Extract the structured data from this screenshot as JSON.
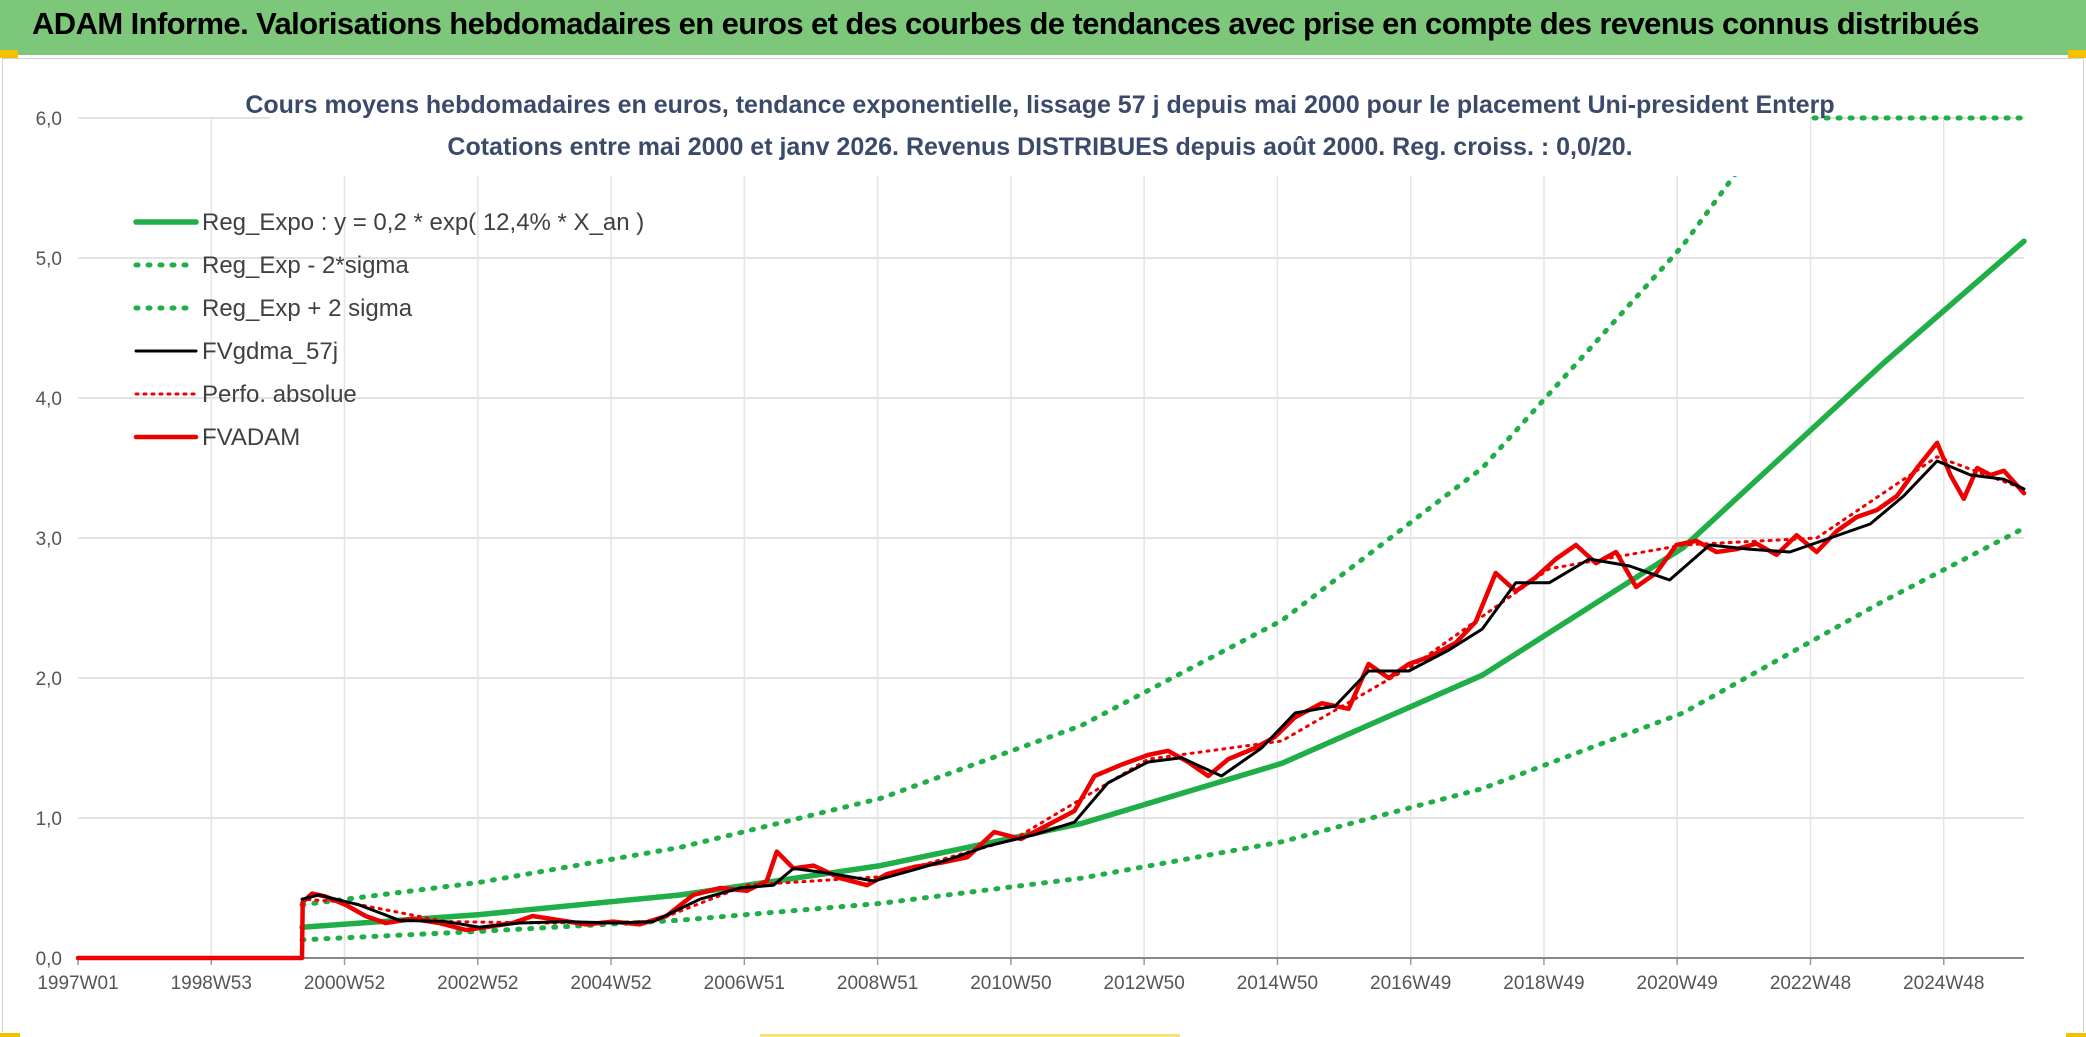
{
  "header": {
    "title": "ADAM Informe. Valorisations hebdomadaires en euros et des courbes de tendances avec prise en compte des revenus connus distribués"
  },
  "colors": {
    "header_bg": "#7dc77b",
    "reg_green": "#1fae48",
    "fv_black": "#000000",
    "adam_red": "#ee0000",
    "grid": "#d9d9d9"
  },
  "chart_data": {
    "type": "line",
    "title": "Cours moyens hebdomadaires en euros, tendance exponentielle, lissage 57 j depuis mai 2000 pour le placement Uni-president Enterp",
    "subtitle": "Cotations entre mai 2000 et janv 2026. Revenus DISTRIBUES depuis août 2000. Reg. croiss. : 0,0/20.",
    "y_ticks": [
      "0,0",
      "1,0",
      "2,0",
      "3,0",
      "4,0",
      "5,0",
      "6,0"
    ],
    "ylim": [
      0,
      6
    ],
    "x_ticks": [
      "1997W01",
      "1998W53",
      "2000W52",
      "2002W52",
      "2004W52",
      "2006W51",
      "2008W51",
      "2010W50",
      "2012W50",
      "2014W50",
      "2016W49",
      "2018W49",
      "2020W49",
      "2022W48",
      "2024W48"
    ],
    "xlim": [
      1997.0,
      2026.1
    ],
    "grid": true,
    "legend_position": "top-left",
    "legend": [
      {
        "label": "Reg_Expo : y = 0,2 * exp( 12,4% *  X_an )",
        "style": "solid-green"
      },
      {
        "label": "Reg_Exp - 2*sigma",
        "style": "dotted-green"
      },
      {
        "label": "Reg_Exp + 2 sigma",
        "style": "dotted-green"
      },
      {
        "label": "FVgdma_57j",
        "style": "solid-black"
      },
      {
        "label": "Perfo. absolue",
        "style": "dotted-red"
      },
      {
        "label": "FVADAM",
        "style": "solid-red"
      }
    ],
    "series": [
      {
        "name": "Reg_Expo : y = 0,2 * exp( 12,4% *  X_an )",
        "x": [
          2000.35,
          2003,
          2006,
          2009,
          2012,
          2015,
          2018,
          2021,
          2024,
          2026.1
        ],
        "values": [
          0.22,
          0.31,
          0.45,
          0.66,
          0.96,
          1.39,
          2.02,
          2.93,
          4.25,
          5.12
        ]
      },
      {
        "name": "Reg_Exp - 2*sigma",
        "x": [
          2000.35,
          2003,
          2006,
          2009,
          2012,
          2015,
          2018,
          2021,
          2024,
          2026.1
        ],
        "values": [
          0.13,
          0.19,
          0.27,
          0.39,
          0.57,
          0.83,
          1.21,
          1.75,
          2.55,
          3.07
        ]
      },
      {
        "name": "Reg_Exp + 2 sigma",
        "x": [
          2000.35,
          2003,
          2006,
          2009,
          2012,
          2015,
          2018,
          2021,
          2022.4,
          2026.1
        ],
        "values": [
          0.38,
          0.54,
          0.79,
          1.14,
          1.66,
          2.41,
          3.5,
          5.09,
          6.0,
          6.0
        ]
      },
      {
        "name": "FVgdma_57j",
        "x": [
          2000.35,
          2000.6,
          2001.2,
          2001.8,
          2002.5,
          2003.0,
          2003.6,
          2004.3,
          2005.0,
          2005.6,
          2006.3,
          2006.9,
          2007.4,
          2007.7,
          2008.3,
          2008.9,
          2009.5,
          2010.0,
          2010.6,
          2011.3,
          2011.9,
          2012.4,
          2013.0,
          2013.5,
          2014.1,
          2014.7,
          2015.2,
          2015.8,
          2016.3,
          2016.9,
          2017.5,
          2018.0,
          2018.5,
          2019.0,
          2019.6,
          2020.2,
          2020.8,
          2021.4,
          2022.0,
          2022.6,
          2023.2,
          2023.8,
          2024.3,
          2024.8,
          2025.3,
          2025.8,
          2026.1
        ],
        "values": [
          0.42,
          0.45,
          0.38,
          0.27,
          0.26,
          0.22,
          0.25,
          0.26,
          0.25,
          0.26,
          0.42,
          0.5,
          0.52,
          0.64,
          0.6,
          0.55,
          0.63,
          0.7,
          0.8,
          0.88,
          0.97,
          1.25,
          1.4,
          1.43,
          1.3,
          1.5,
          1.75,
          1.8,
          2.05,
          2.05,
          2.2,
          2.35,
          2.68,
          2.68,
          2.85,
          2.8,
          2.7,
          2.95,
          2.92,
          2.9,
          3.0,
          3.1,
          3.3,
          3.55,
          3.45,
          3.42,
          3.35
        ]
      },
      {
        "name": "Perfo. absolue",
        "x": [
          1997.0,
          2000.35,
          2000.36,
          2001.0,
          2002.5,
          2004.0,
          2005.6,
          2007.0,
          2009.0,
          2011.0,
          2013.0,
          2015.0,
          2017.0,
          2019.0,
          2021.0,
          2023.0,
          2024.8,
          2026.1
        ],
        "values": [
          0,
          0,
          0.42,
          0.4,
          0.26,
          0.25,
          0.26,
          0.52,
          0.58,
          0.85,
          1.42,
          1.55,
          2.1,
          2.78,
          2.95,
          3.0,
          3.58,
          3.35
        ]
      },
      {
        "name": "FVADAM",
        "x": [
          1997.0,
          2000.35,
          2000.36,
          2000.5,
          2000.7,
          2001.0,
          2001.3,
          2001.6,
          2002.0,
          2002.4,
          2002.8,
          2003.1,
          2003.5,
          2003.8,
          2004.2,
          2004.6,
          2005.0,
          2005.4,
          2005.8,
          2006.2,
          2006.6,
          2007.0,
          2007.3,
          2007.45,
          2007.7,
          2008.0,
          2008.4,
          2008.8,
          2009.1,
          2009.5,
          2009.9,
          2010.3,
          2010.7,
          2011.1,
          2011.5,
          2011.9,
          2012.2,
          2012.6,
          2013.0,
          2013.3,
          2013.6,
          2013.9,
          2014.2,
          2014.6,
          2014.9,
          2015.2,
          2015.6,
          2016.0,
          2016.3,
          2016.6,
          2016.9,
          2017.2,
          2017.6,
          2017.9,
          2018.2,
          2018.5,
          2018.8,
          2019.1,
          2019.4,
          2019.7,
          2020.0,
          2020.3,
          2020.6,
          2020.9,
          2021.2,
          2021.5,
          2021.8,
          2022.1,
          2022.4,
          2022.7,
          2023.0,
          2023.3,
          2023.6,
          2023.9,
          2024.2,
          2024.5,
          2024.8,
          2025.0,
          2025.2,
          2025.4,
          2025.6,
          2025.8,
          2026.1
        ],
        "values": [
          0,
          0,
          0.4,
          0.46,
          0.44,
          0.38,
          0.3,
          0.25,
          0.28,
          0.25,
          0.2,
          0.22,
          0.25,
          0.3,
          0.27,
          0.24,
          0.26,
          0.24,
          0.3,
          0.45,
          0.5,
          0.48,
          0.55,
          0.76,
          0.64,
          0.66,
          0.57,
          0.52,
          0.6,
          0.65,
          0.68,
          0.72,
          0.9,
          0.85,
          0.95,
          1.05,
          1.3,
          1.38,
          1.45,
          1.48,
          1.4,
          1.3,
          1.42,
          1.5,
          1.58,
          1.72,
          1.82,
          1.78,
          2.1,
          2.0,
          2.1,
          2.15,
          2.25,
          2.4,
          2.75,
          2.62,
          2.72,
          2.85,
          2.95,
          2.82,
          2.9,
          2.65,
          2.75,
          2.95,
          2.98,
          2.9,
          2.92,
          2.96,
          2.88,
          3.02,
          2.9,
          3.05,
          3.15,
          3.2,
          3.3,
          3.5,
          3.68,
          3.45,
          3.28,
          3.5,
          3.45,
          3.48,
          3.32
        ]
      }
    ]
  }
}
